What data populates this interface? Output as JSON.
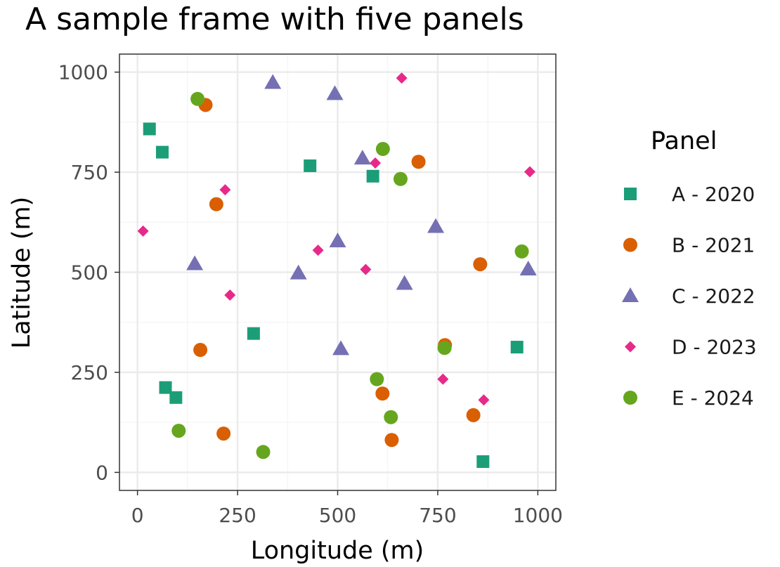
{
  "chart_data": {
    "type": "scatter",
    "title": "A sample frame with five panels",
    "xlabel": "Longitude (m)",
    "ylabel": "Latitude (m)",
    "xlim": [
      -45,
      1045
    ],
    "ylim": [
      -45,
      1045
    ],
    "x_ticks": [
      0,
      250,
      500,
      750,
      1000
    ],
    "y_ticks": [
      0,
      250,
      500,
      750,
      1000
    ],
    "x_tick_labels": [
      "0",
      "250",
      "500",
      "750",
      "1000"
    ],
    "y_tick_labels": [
      "0",
      "250",
      "500",
      "750",
      "1000"
    ],
    "grid": true,
    "legend": {
      "title": "Panel",
      "position": "right"
    },
    "series": [
      {
        "name": "A - 2020",
        "color": "#1b9e77",
        "shape": "square",
        "points": [
          [
            30,
            858
          ],
          [
            62,
            800
          ],
          [
            431,
            766
          ],
          [
            588,
            740
          ],
          [
            290,
            347
          ],
          [
            948,
            313
          ],
          [
            70,
            212
          ],
          [
            96,
            187
          ],
          [
            863,
            27
          ]
        ]
      },
      {
        "name": "B - 2021",
        "color": "#d95f02",
        "shape": "circle",
        "points": [
          [
            170,
            918
          ],
          [
            702,
            776
          ],
          [
            197,
            670
          ],
          [
            856,
            520
          ],
          [
            768,
            318
          ],
          [
            157,
            306
          ],
          [
            612,
            197
          ],
          [
            215,
            97
          ],
          [
            839,
            143
          ],
          [
            635,
            81
          ]
        ]
      },
      {
        "name": "C - 2022",
        "color": "#7570b3",
        "shape": "triangle",
        "points": [
          [
            338,
            974
          ],
          [
            493,
            946
          ],
          [
            562,
            785
          ],
          [
            745,
            614
          ],
          [
            500,
            578
          ],
          [
            143,
            521
          ],
          [
            402,
            498
          ],
          [
            976,
            508
          ],
          [
            667,
            472
          ],
          [
            508,
            309
          ]
        ]
      },
      {
        "name": "D - 2023",
        "color": "#e7298a",
        "shape": "diamond",
        "points": [
          [
            660,
            985
          ],
          [
            594,
            773
          ],
          [
            980,
            751
          ],
          [
            219,
            706
          ],
          [
            14,
            603
          ],
          [
            451,
            555
          ],
          [
            570,
            507
          ],
          [
            231,
            443
          ],
          [
            763,
            233
          ],
          [
            865,
            181
          ]
        ]
      },
      {
        "name": "E - 2024",
        "color": "#66a61e",
        "shape": "circle",
        "points": [
          [
            150,
            933
          ],
          [
            613,
            808
          ],
          [
            657,
            733
          ],
          [
            960,
            552
          ],
          [
            767,
            311
          ],
          [
            598,
            233
          ],
          [
            633,
            138
          ],
          [
            103,
            104
          ],
          [
            314,
            51
          ]
        ]
      }
    ]
  }
}
